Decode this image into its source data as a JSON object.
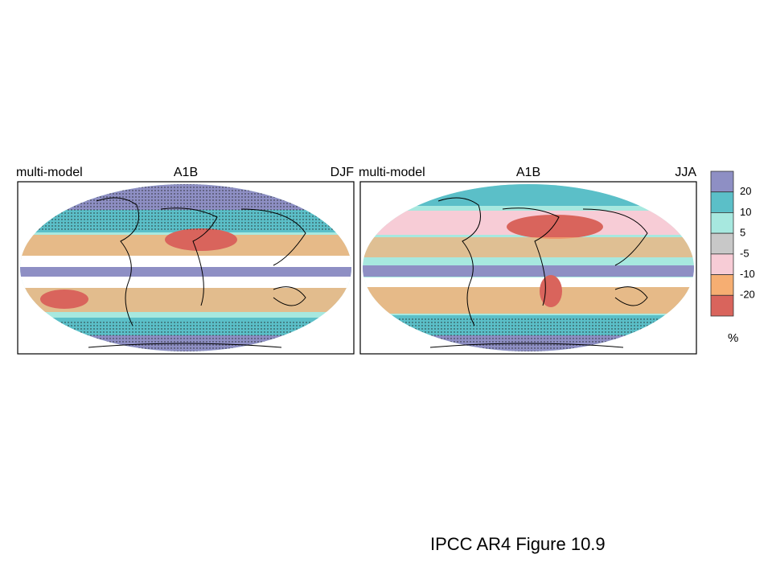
{
  "panels": [
    {
      "left": "multi-model",
      "center": "A1B",
      "right": "DJF"
    },
    {
      "left": "multi-model",
      "center": "A1B",
      "right": "JJA"
    }
  ],
  "legend": {
    "colors": [
      "#8e8fc4",
      "#5bbfc8",
      "#a7e8df",
      "#c8c8c8",
      "#f7ccd6",
      "#f6ae72",
      "#d9645c"
    ],
    "ticks": [
      20,
      10,
      5,
      -5,
      -10,
      -20
    ],
    "unit": "%"
  },
  "caption": "IPCC AR4 Figure 10.9"
}
